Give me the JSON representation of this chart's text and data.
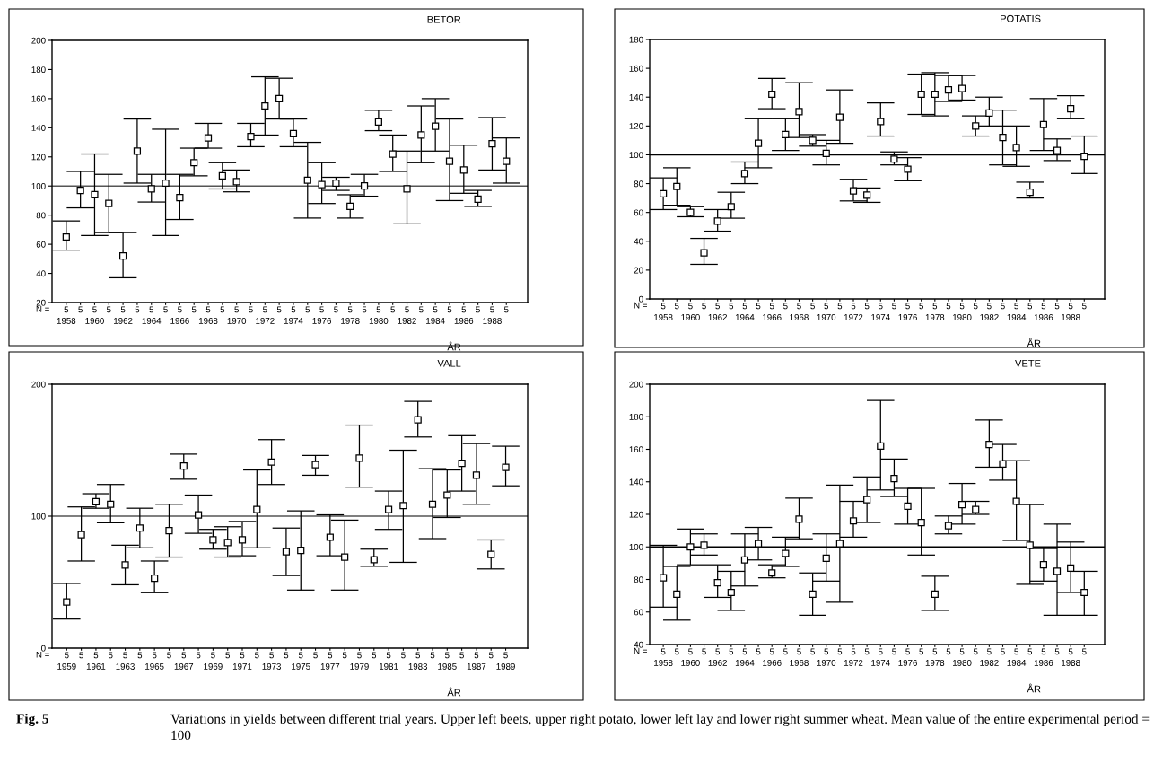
{
  "chart_data": [
    {
      "type": "scatter",
      "title": "BETOR",
      "xlabel": "ÅR",
      "marker": "square",
      "grid": false,
      "categories": [
        "5\n1958",
        "5",
        "5\n1960",
        "5",
        "5\n1962",
        "5",
        "5\n1964",
        "5",
        "5\n1966",
        "5",
        "5\n1968",
        "5",
        "5\n1970",
        "5",
        "5\n1972",
        "5",
        "5\n1974",
        "5",
        "5\n1976",
        "5",
        "5\n1978",
        "5",
        "5\n1980",
        "5",
        "5\n1982",
        "5",
        "5\n1984",
        "5",
        "5\n1986",
        "5",
        "5\n1988",
        "5"
      ],
      "ylim": [
        20,
        200
      ],
      "yticks": [
        20,
        40,
        60,
        80,
        100,
        120,
        140,
        160,
        180,
        200
      ],
      "ref_lines": [
        {
          "axis": "y",
          "value": 100,
          "color": "#555555"
        }
      ],
      "annotations": [
        "N =",
        "Fig. 5",
        "Variations in yields between different trial years. Upper left beets, upper right potato, lower left lay and lower right summer wheat. Mean value of the entire experimental period = 100"
      ],
      "series": [
        {
          "color": "#000000",
          "values": [
            65,
            97,
            94,
            88,
            52,
            124,
            98,
            102,
            92,
            116,
            133,
            107,
            103,
            134,
            155,
            160,
            136,
            104,
            101,
            102,
            86,
            100,
            144,
            122,
            98,
            135,
            141,
            117,
            111,
            91,
            129,
            117
          ],
          "errors": [
            [
              56,
              76
            ],
            [
              85,
              110
            ],
            [
              66,
              122
            ],
            [
              68,
              108
            ],
            [
              37,
              68
            ],
            [
              102,
              146
            ],
            [
              89,
              108
            ],
            [
              66,
              139
            ],
            [
              77,
              108
            ],
            [
              107,
              126
            ],
            [
              126,
              143
            ],
            [
              98,
              116
            ],
            [
              96,
              111
            ],
            [
              127,
              143
            ],
            [
              135,
              175
            ],
            [
              146,
              174
            ],
            [
              127,
              146
            ],
            [
              78,
              130
            ],
            [
              88,
              116
            ],
            [
              97,
              106
            ],
            [
              78,
              94
            ],
            [
              93,
              108
            ],
            [
              138,
              152
            ],
            [
              110,
              135
            ],
            [
              74,
              124
            ],
            [
              116,
              155
            ],
            [
              124,
              160
            ],
            [
              90,
              146
            ],
            [
              95,
              128
            ],
            [
              86,
              97
            ],
            [
              111,
              147
            ],
            [
              102,
              133
            ]
          ]
        }
      ]
    },
    {
      "type": "scatter",
      "title": "POTATIS",
      "xlabel": "ÅR",
      "marker": "square",
      "grid": false,
      "categories": [
        "5\n1958",
        "5",
        "5\n1960",
        "5",
        "5\n1962",
        "5",
        "5\n1964",
        "5",
        "5\n1966",
        "5",
        "5\n1968",
        "5",
        "5\n1970",
        "5",
        "5\n1972",
        "5",
        "5\n1974",
        "5",
        "5\n1976",
        "5",
        "5\n1978",
        "5",
        "5\n1980",
        "5",
        "5\n1982",
        "5",
        "5\n1984",
        "5",
        "5\n1986",
        "5",
        "5\n1988",
        "5"
      ],
      "ylim": [
        0,
        180
      ],
      "yticks": [
        0,
        20,
        40,
        60,
        80,
        100,
        120,
        140,
        160,
        180
      ],
      "ref_lines": [
        {
          "axis": "y",
          "value": 100,
          "color": "#000000"
        }
      ],
      "annotations": [
        "N ="
      ],
      "series": [
        {
          "color": "#000000",
          "values": [
            73,
            78,
            60,
            32,
            54,
            64,
            87,
            108,
            142,
            114,
            130,
            110,
            101,
            126,
            75,
            72,
            123,
            97,
            90,
            142,
            142,
            145,
            146,
            120,
            129,
            112,
            105,
            74,
            121,
            103,
            132,
            99
          ],
          "errors": [
            [
              62,
              84
            ],
            [
              65,
              91
            ],
            [
              57,
              64
            ],
            [
              24,
              42
            ],
            [
              47,
              62
            ],
            [
              56,
              74
            ],
            [
              80,
              95
            ],
            [
              91,
              125
            ],
            [
              132,
              153
            ],
            [
              103,
              125
            ],
            [
              112,
              150
            ],
            [
              106,
              114
            ],
            [
              93,
              110
            ],
            [
              108,
              145
            ],
            [
              68,
              83
            ],
            [
              67,
              77
            ],
            [
              113,
              136
            ],
            [
              93,
              102
            ],
            [
              82,
              98
            ],
            [
              128,
              156
            ],
            [
              127,
              157
            ],
            [
              137,
              155
            ],
            [
              138,
              155
            ],
            [
              113,
              127
            ],
            [
              120,
              140
            ],
            [
              93,
              131
            ],
            [
              92,
              120
            ],
            [
              70,
              81
            ],
            [
              103,
              139
            ],
            [
              96,
              111
            ],
            [
              125,
              141
            ],
            [
              87,
              113
            ]
          ]
        }
      ]
    },
    {
      "type": "scatter",
      "title": "VALL",
      "xlabel": "ÅR",
      "marker": "square",
      "grid": false,
      "categories": [
        "5\n1959",
        "5",
        "5\n1961",
        "5",
        "5\n1963",
        "5",
        "5\n1965",
        "5",
        "5\n1967",
        "5",
        "5\n1969",
        "5",
        "5\n1971",
        "5",
        "5\n1973",
        "5",
        "5\n1975",
        "5",
        "5\n1977",
        "5",
        "5\n1979",
        "5",
        "5\n1981",
        "5",
        "5\n1983",
        "5",
        "5\n1985",
        "5",
        "5\n1987",
        "5",
        "5\n1989"
      ],
      "ylim": [
        0,
        200
      ],
      "yticks": [
        0,
        100,
        200
      ],
      "ref_lines": [
        {
          "axis": "y",
          "value": 100,
          "color": "#555555"
        }
      ],
      "annotations": [
        "N ="
      ],
      "series": [
        {
          "color": "#000000",
          "values": [
            35,
            86,
            111,
            109,
            63,
            91,
            53,
            89,
            138,
            101,
            82,
            80,
            82,
            105,
            141,
            73,
            74,
            139,
            84,
            69,
            144,
            67,
            105,
            108,
            173,
            109,
            116,
            140,
            131,
            71,
            137
          ],
          "errors": [
            [
              22,
              49
            ],
            [
              66,
              107
            ],
            [
              106,
              117
            ],
            [
              95,
              124
            ],
            [
              48,
              78
            ],
            [
              76,
              106
            ],
            [
              42,
              66
            ],
            [
              69,
              109
            ],
            [
              128,
              147
            ],
            [
              87,
              116
            ],
            [
              75,
              90
            ],
            [
              69,
              92
            ],
            [
              70,
              96
            ],
            [
              76,
              135
            ],
            [
              124,
              158
            ],
            [
              55,
              91
            ],
            [
              44,
              104
            ],
            [
              131,
              146
            ],
            [
              70,
              101
            ],
            [
              44,
              97
            ],
            [
              122,
              169
            ],
            [
              62,
              75
            ],
            [
              90,
              119
            ],
            [
              65,
              150
            ],
            [
              160,
              187
            ],
            [
              83,
              136
            ],
            [
              99,
              135
            ],
            [
              119,
              161
            ],
            [
              109,
              155
            ],
            [
              60,
              82
            ],
            [
              123,
              153
            ]
          ]
        }
      ]
    },
    {
      "type": "scatter",
      "title": "VETE",
      "xlabel": "ÅR",
      "marker": "square",
      "grid": false,
      "categories": [
        "5\n1958",
        "5",
        "5\n1960",
        "5",
        "5\n1962",
        "5",
        "5\n1964",
        "5",
        "5\n1966",
        "5",
        "5\n1968",
        "5",
        "5\n1970",
        "5",
        "5\n1972",
        "5",
        "5\n1974",
        "5",
        "5\n1976",
        "5",
        "5\n1978",
        "5",
        "5\n1980",
        "5",
        "5\n1982",
        "5",
        "5\n1984",
        "5",
        "5\n1986",
        "5",
        "5\n1988",
        "5"
      ],
      "ylim": [
        40,
        200
      ],
      "yticks": [
        40,
        60,
        80,
        100,
        120,
        140,
        160,
        180,
        200
      ],
      "ref_lines": [
        {
          "axis": "y",
          "value": 100,
          "color": "#000000"
        }
      ],
      "annotations": [
        "N ="
      ],
      "series": [
        {
          "color": "#000000",
          "values": [
            81,
            71,
            100,
            101,
            78,
            72,
            92,
            102,
            84,
            96,
            117,
            71,
            93,
            102,
            116,
            129,
            162,
            142,
            125,
            115,
            71,
            113,
            126,
            123,
            163,
            151,
            128,
            101,
            89,
            85,
            87,
            72
          ],
          "errors": [
            [
              63,
              101
            ],
            [
              55,
              88
            ],
            [
              89,
              111
            ],
            [
              95,
              108
            ],
            [
              69,
              89
            ],
            [
              61,
              85
            ],
            [
              76,
              108
            ],
            [
              92,
              112
            ],
            [
              81,
              89
            ],
            [
              88,
              106
            ],
            [
              105,
              130
            ],
            [
              58,
              84
            ],
            [
              79,
              108
            ],
            [
              66,
              138
            ],
            [
              106,
              128
            ],
            [
              115,
              143
            ],
            [
              135,
              190
            ],
            [
              131,
              154
            ],
            [
              114,
              136
            ],
            [
              95,
              136
            ],
            [
              61,
              82
            ],
            [
              108,
              119
            ],
            [
              114,
              139
            ],
            [
              120,
              128
            ],
            [
              149,
              178
            ],
            [
              141,
              163
            ],
            [
              104,
              153
            ],
            [
              77,
              126
            ],
            [
              79,
              99
            ],
            [
              58,
              114
            ],
            [
              72,
              103
            ],
            [
              58,
              85
            ]
          ]
        }
      ]
    }
  ]
}
